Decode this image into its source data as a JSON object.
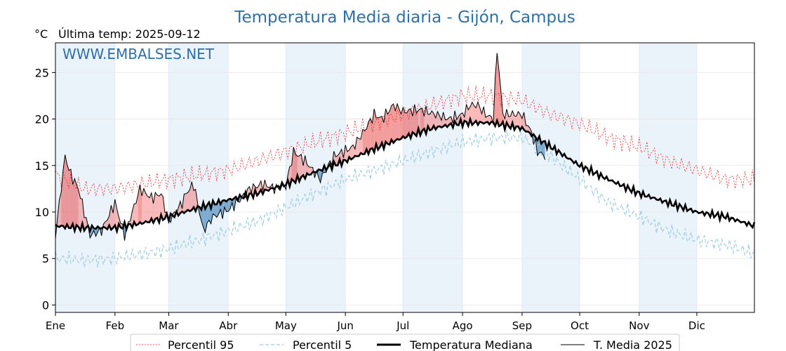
{
  "chart_data": {
    "type": "line",
    "title": "Temperatura Media diaria - Gijón, Campus",
    "unit_label": "°C",
    "last_temp_label": "Última temp: 2025-09-12",
    "watermark": "WWW.EMBALSES.NET",
    "ylim": [
      -0.8,
      28.2
    ],
    "yticks": [
      0,
      5,
      10,
      15,
      20,
      25
    ],
    "months": [
      "Ene",
      "Feb",
      "Mar",
      "Abr",
      "May",
      "Jun",
      "Jul",
      "Ago",
      "Sep",
      "Oct",
      "Nov",
      "Dic"
    ],
    "month_start_days": [
      0,
      31,
      59,
      90,
      120,
      151,
      181,
      212,
      243,
      273,
      304,
      334
    ],
    "days_in_year": 365,
    "legend": [
      "Percentil 95",
      "Percentil 5",
      "Temperatura Mediana",
      "T. Media 2025"
    ],
    "colors": {
      "p95": "#e8262a",
      "p5": "#9fcde0",
      "median": "#000000",
      "current": "#000000",
      "above_fill": "#f08080",
      "above_fill_extreme": "#e84a4a",
      "below_fill": "#6a9dc8",
      "band": "#eaf2fa",
      "title": "#2f6fa8"
    },
    "series_keypoints": {
      "p95": [
        [
          0,
          14.0
        ],
        [
          15,
          12.5
        ],
        [
          31,
          12.5
        ],
        [
          45,
          13.0
        ],
        [
          59,
          13.5
        ],
        [
          75,
          14.0
        ],
        [
          90,
          14.5
        ],
        [
          105,
          15.5
        ],
        [
          120,
          16.5
        ],
        [
          135,
          17.5
        ],
        [
          151,
          18.5
        ],
        [
          166,
          19.5
        ],
        [
          181,
          20.5
        ],
        [
          196,
          21.5
        ],
        [
          212,
          22.5
        ],
        [
          227,
          22.5
        ],
        [
          243,
          22.0
        ],
        [
          258,
          20.5
        ],
        [
          273,
          19.5
        ],
        [
          288,
          18.0
        ],
        [
          304,
          17.0
        ],
        [
          319,
          15.5
        ],
        [
          334,
          14.5
        ],
        [
          349,
          13.5
        ],
        [
          364,
          13.5
        ]
      ],
      "p5": [
        [
          0,
          5.0
        ],
        [
          15,
          4.8
        ],
        [
          31,
          5.0
        ],
        [
          45,
          5.5
        ],
        [
          59,
          6.0
        ],
        [
          75,
          7.0
        ],
        [
          90,
          8.0
        ],
        [
          105,
          9.0
        ],
        [
          120,
          10.5
        ],
        [
          135,
          12.0
        ],
        [
          151,
          13.5
        ],
        [
          166,
          14.5
        ],
        [
          181,
          15.5
        ],
        [
          196,
          16.5
        ],
        [
          212,
          17.5
        ],
        [
          227,
          18.0
        ],
        [
          243,
          18.0
        ],
        [
          258,
          16.0
        ],
        [
          273,
          13.5
        ],
        [
          288,
          11.0
        ],
        [
          304,
          9.5
        ],
        [
          319,
          8.0
        ],
        [
          334,
          7.0
        ],
        [
          349,
          6.5
        ],
        [
          364,
          5.5
        ]
      ],
      "median": [
        [
          0,
          8.5
        ],
        [
          15,
          8.3
        ],
        [
          31,
          8.3
        ],
        [
          45,
          8.8
        ],
        [
          59,
          9.5
        ],
        [
          75,
          10.5
        ],
        [
          90,
          11.3
        ],
        [
          105,
          12.0
        ],
        [
          120,
          13.0
        ],
        [
          135,
          14.3
        ],
        [
          151,
          15.5
        ],
        [
          166,
          16.8
        ],
        [
          181,
          18.0
        ],
        [
          196,
          19.0
        ],
        [
          212,
          19.6
        ],
        [
          227,
          19.6
        ],
        [
          243,
          19.0
        ],
        [
          258,
          17.0
        ],
        [
          273,
          15.0
        ],
        [
          288,
          13.5
        ],
        [
          304,
          12.0
        ],
        [
          319,
          11.0
        ],
        [
          334,
          10.0
        ],
        [
          349,
          9.5
        ],
        [
          364,
          8.5
        ]
      ],
      "current": [
        [
          0,
          7.5
        ],
        [
          5,
          16.0
        ],
        [
          8,
          14.0
        ],
        [
          12,
          12.5
        ],
        [
          18,
          7.5
        ],
        [
          24,
          8.0
        ],
        [
          31,
          11.0
        ],
        [
          36,
          7.5
        ],
        [
          44,
          12.5
        ],
        [
          50,
          11.5
        ],
        [
          55,
          12.0
        ],
        [
          59,
          9.0
        ],
        [
          66,
          11.0
        ],
        [
          68,
          12.0
        ],
        [
          72,
          13.0
        ],
        [
          77,
          8.0
        ],
        [
          82,
          9.5
        ],
        [
          90,
          10.2
        ],
        [
          97,
          11.5
        ],
        [
          101,
          12.5
        ],
        [
          108,
          13.0
        ],
        [
          115,
          12.5
        ],
        [
          120,
          12.8
        ],
        [
          124,
          16.5
        ],
        [
          130,
          15.5
        ],
        [
          134,
          14.5
        ],
        [
          138,
          13.5
        ],
        [
          145,
          16.0
        ],
        [
          150,
          16.5
        ],
        [
          155,
          17.0
        ],
        [
          160,
          18.5
        ],
        [
          166,
          20.5
        ],
        [
          170,
          20.0
        ],
        [
          176,
          21.5
        ],
        [
          181,
          20.8
        ],
        [
          190,
          21.0
        ],
        [
          198,
          20.5
        ],
        [
          205,
          20.0
        ],
        [
          212,
          20.5
        ],
        [
          216,
          21.5
        ],
        [
          220,
          21.5
        ],
        [
          224,
          20.5
        ],
        [
          228,
          20.0
        ],
        [
          230,
          27.5
        ],
        [
          233,
          20.5
        ],
        [
          238,
          20.5
        ],
        [
          243,
          20.5
        ],
        [
          248,
          18.5
        ],
        [
          251,
          16.5
        ],
        [
          255,
          16.0
        ]
      ]
    }
  }
}
